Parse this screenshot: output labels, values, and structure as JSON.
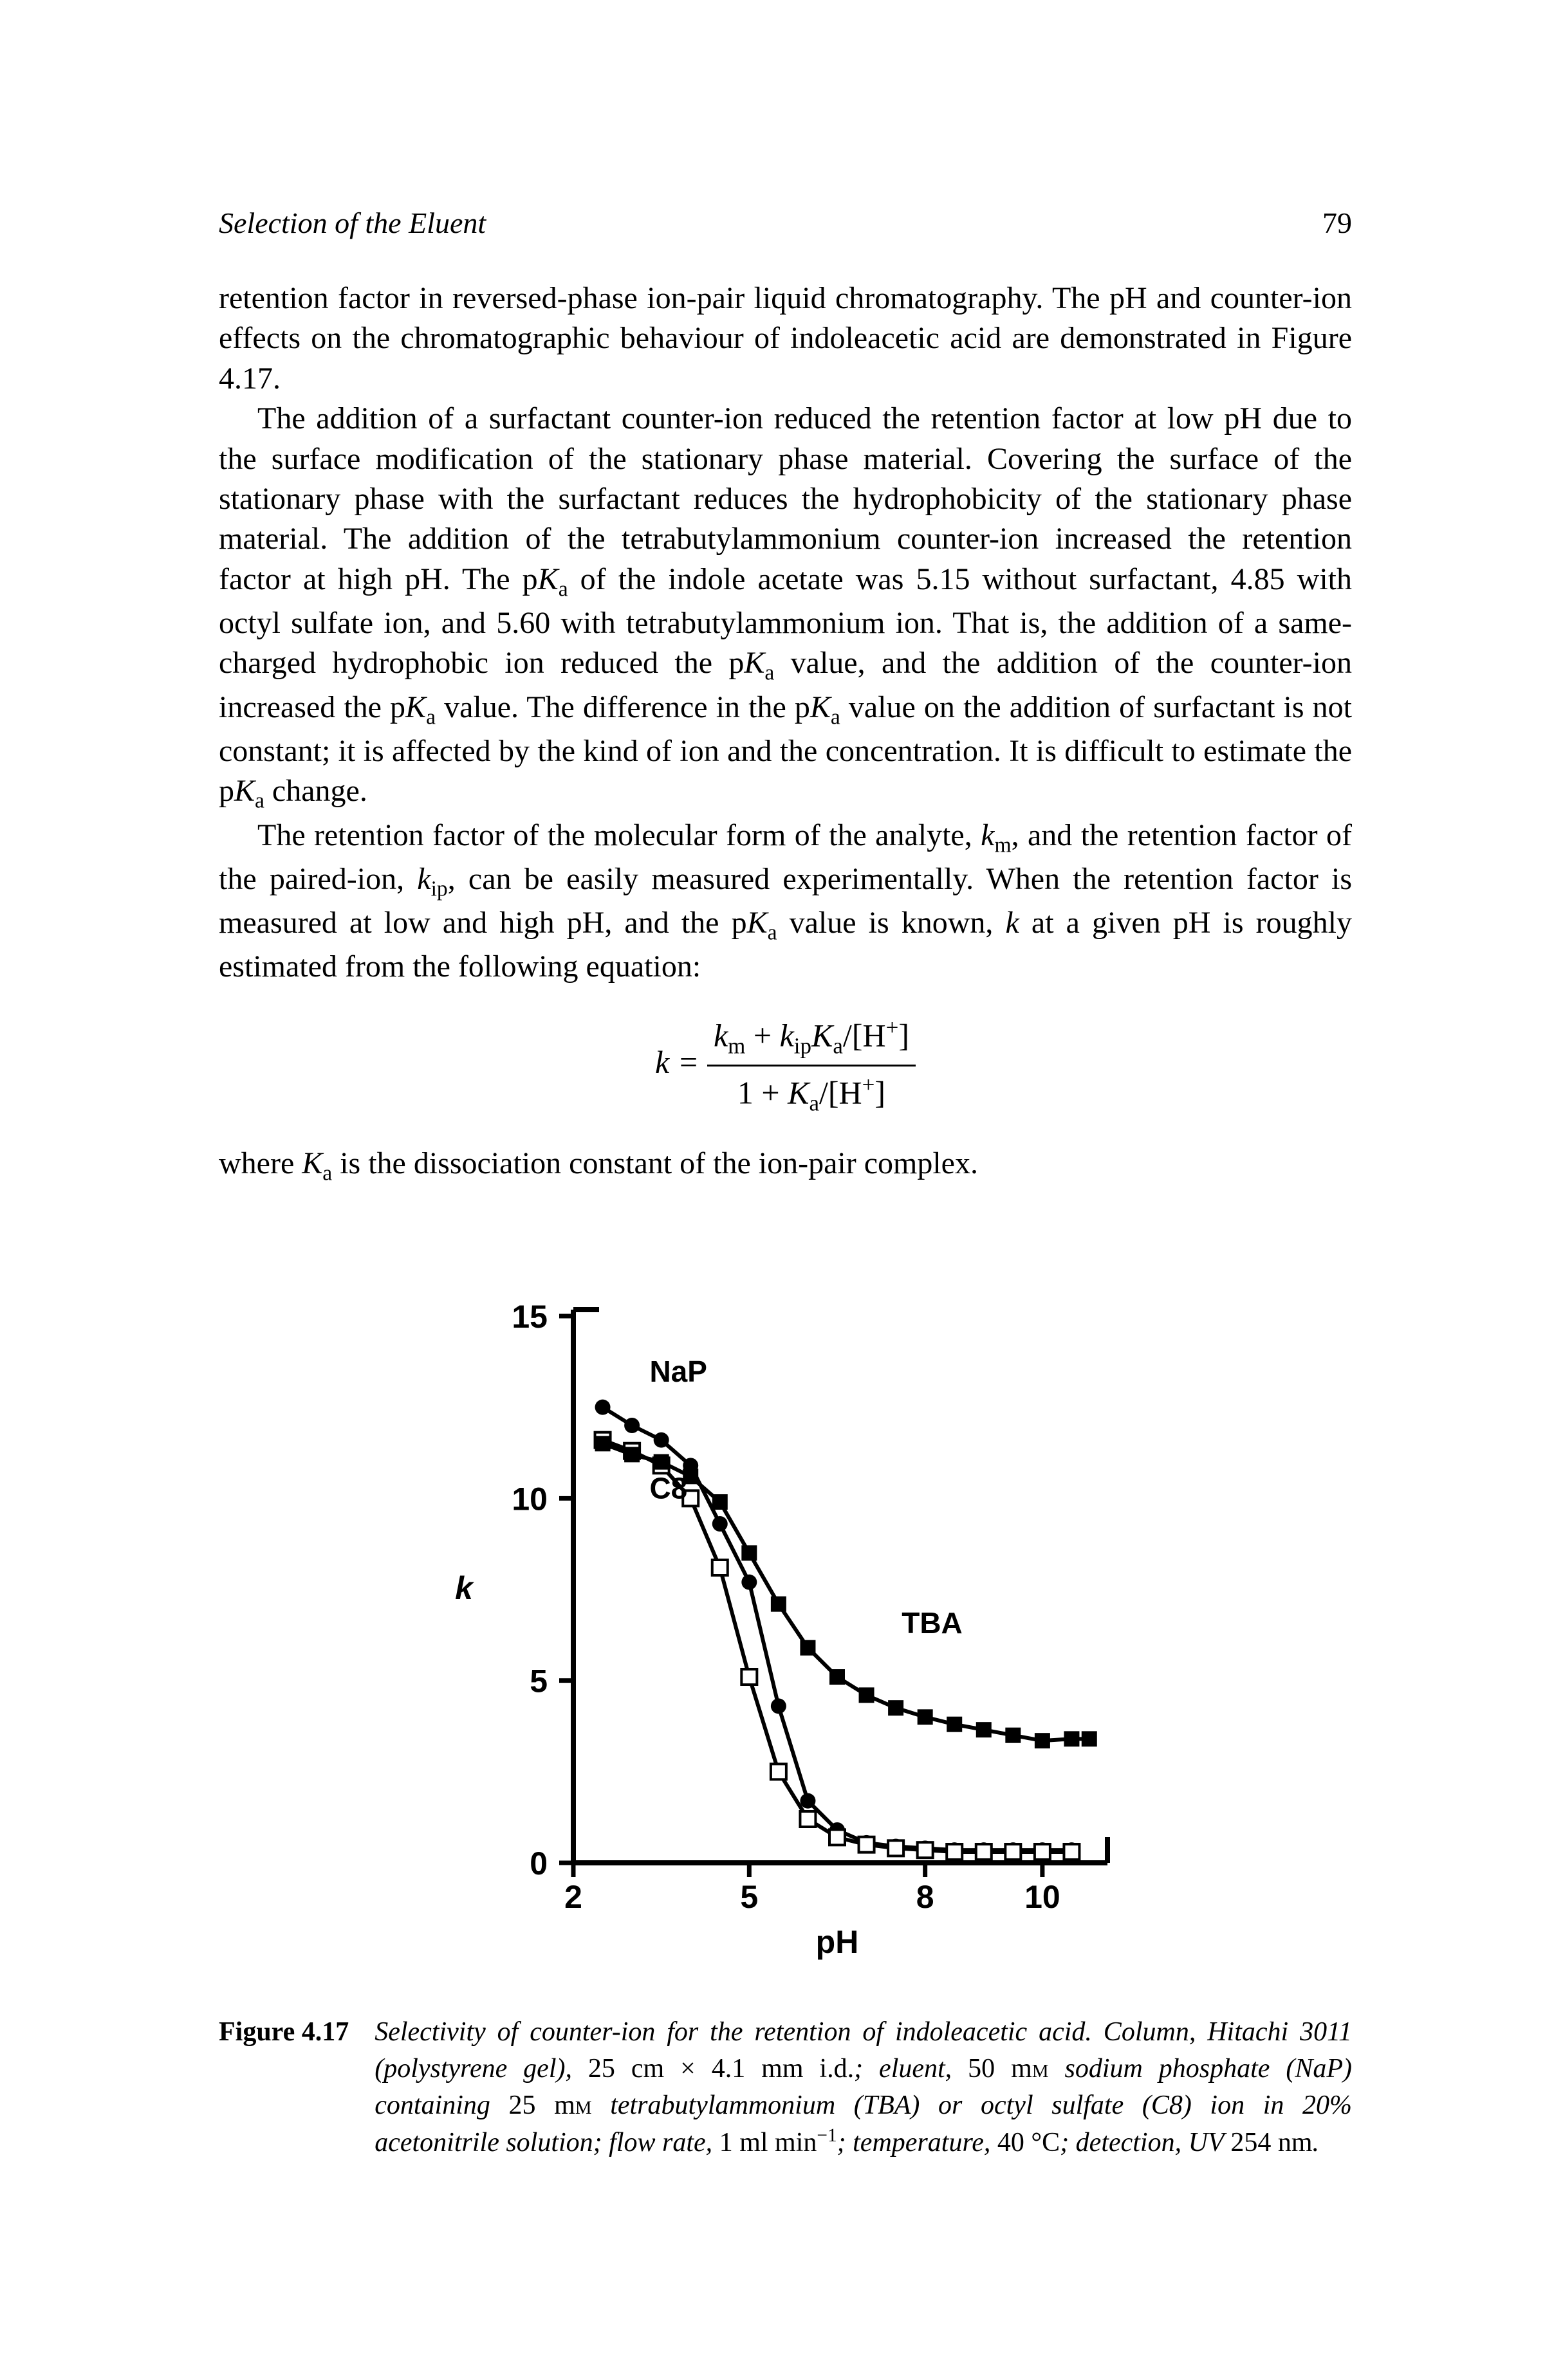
{
  "header": {
    "running_title": "Selection of the Eluent",
    "page_number": "79"
  },
  "paragraphs": {
    "p1": "retention factor in reversed-phase ion-pair liquid chromatography. The pH and counter-ion effects on the chromatographic behaviour of indoleacetic acid are demonstrated in Figure 4.17.",
    "p2_a": "The addition of a surfactant counter-ion reduced the retention factor at low pH due to the surface modification of the stationary phase material. Covering the surface of the stationary phase with the surfactant reduces the hydrophobicity of the stationary phase material. The addition of the tetrabutylammonium counter-ion increased the retention factor at high pH. The p",
    "p2_b": " of the indole acetate was 5.15 without surfactant, 4.85 with octyl sulfate ion, and 5.60 with tetrabutylammonium ion. That is, the addition of a same-charged hydrophobic ion reduced the p",
    "p2_c": " value, and the addition of the counter-ion increased the p",
    "p2_d": " value. The difference in the p",
    "p2_e": " value on the addition of surfactant is not constant; it is affected by the kind of ion and the concentration. It is difficult to estimate the p",
    "p2_f": " change.",
    "p3_a": "The retention factor of the molecular form of the analyte, ",
    "p3_b": ", and the retention factor of the paired-ion, ",
    "p3_c": ", can be easily measured experimentally. When the retention factor is measured at low and high pH, and the p",
    "p3_d": " value is known, ",
    "p3_e": " at a given pH is roughly estimated from the following equation:",
    "p4_a": "where ",
    "p4_b": " is the dissociation constant of the ion-pair complex."
  },
  "symbols": {
    "Ka": "K",
    "Ka_sub": "a",
    "km": "k",
    "km_sub": "m",
    "kip": "k",
    "kip_sub": "ip",
    "k": "k"
  },
  "equation": {
    "lhs": "k =",
    "num_a": "k",
    "num_a_sub": "m",
    "num_plus": " + ",
    "num_b": "k",
    "num_b_sub": "ip",
    "num_c": "K",
    "num_c_sub": "a",
    "num_d": "/[H",
    "num_d_sup": "+",
    "num_e": "]",
    "den_a": "1 + ",
    "den_b": "K",
    "den_b_sub": "a",
    "den_c": "/[H",
    "den_c_sup": "+",
    "den_d": "]"
  },
  "figure": {
    "label": "Figure 4.17",
    "caption_plain": "Selectivity of counter-ion for the retention of indoleacetic acid. Column, Hitachi 3011 (polystyrene gel), 25 cm × 4.1 mm i.d.; eluent, 50 mM sodium phosphate (NaP) containing 25 mM tetrabutylammonium (TBA) or octyl sulfate (C8) ion in 20% acetonitrile solution; flow rate, 1 ml min⁻¹; temperature, 40 °C; detection, UV 254 nm."
  },
  "chart": {
    "type": "line",
    "xlabel": "pH",
    "ylabel": "k",
    "xlim": [
      2,
      11
    ],
    "ylim": [
      0,
      15
    ],
    "xticks": [
      2,
      5,
      8,
      10
    ],
    "yticks": [
      0,
      5,
      10,
      15
    ],
    "tick_fontsize": 50,
    "label_fontsize": 50,
    "axis_color": "#000000",
    "background_color": "#ffffff",
    "line_width": 6,
    "marker_size": 12,
    "series": [
      {
        "name": "NaP",
        "label_pos": {
          "x": 3.3,
          "y": 13.2
        },
        "marker": "circle",
        "color": "#000000",
        "points": [
          {
            "x": 2.5,
            "y": 12.5
          },
          {
            "x": 3.0,
            "y": 12.0
          },
          {
            "x": 3.5,
            "y": 11.6
          },
          {
            "x": 4.0,
            "y": 10.9
          },
          {
            "x": 4.5,
            "y": 9.3
          },
          {
            "x": 5.0,
            "y": 7.7
          },
          {
            "x": 5.5,
            "y": 4.3
          },
          {
            "x": 6.0,
            "y": 1.7
          },
          {
            "x": 6.5,
            "y": 0.9
          },
          {
            "x": 7.0,
            "y": 0.55
          },
          {
            "x": 7.5,
            "y": 0.45
          },
          {
            "x": 8.0,
            "y": 0.4
          },
          {
            "x": 8.5,
            "y": 0.35
          },
          {
            "x": 9.0,
            "y": 0.35
          },
          {
            "x": 9.5,
            "y": 0.35
          },
          {
            "x": 10.0,
            "y": 0.35
          },
          {
            "x": 10.5,
            "y": 0.35
          }
        ]
      },
      {
        "name": "C8",
        "label_pos": {
          "x": 3.3,
          "y": 10.0
        },
        "marker": "square-open",
        "color": "#000000",
        "points": [
          {
            "x": 2.5,
            "y": 11.6
          },
          {
            "x": 3.0,
            "y": 11.3
          },
          {
            "x": 3.5,
            "y": 10.9
          },
          {
            "x": 4.0,
            "y": 10.0
          },
          {
            "x": 4.5,
            "y": 8.1
          },
          {
            "x": 5.0,
            "y": 5.1
          },
          {
            "x": 5.5,
            "y": 2.5
          },
          {
            "x": 6.0,
            "y": 1.2
          },
          {
            "x": 6.5,
            "y": 0.7
          },
          {
            "x": 7.0,
            "y": 0.5
          },
          {
            "x": 7.5,
            "y": 0.4
          },
          {
            "x": 8.0,
            "y": 0.35
          },
          {
            "x": 8.5,
            "y": 0.3
          },
          {
            "x": 9.0,
            "y": 0.3
          },
          {
            "x": 9.5,
            "y": 0.3
          },
          {
            "x": 10.0,
            "y": 0.3
          },
          {
            "x": 10.5,
            "y": 0.3
          }
        ]
      },
      {
        "name": "TBA",
        "label_pos": {
          "x": 7.6,
          "y": 6.3
        },
        "marker": "square",
        "color": "#000000",
        "points": [
          {
            "x": 2.5,
            "y": 11.5
          },
          {
            "x": 3.0,
            "y": 11.2
          },
          {
            "x": 3.5,
            "y": 11.0
          },
          {
            "x": 4.0,
            "y": 10.6
          },
          {
            "x": 4.5,
            "y": 9.9
          },
          {
            "x": 5.0,
            "y": 8.5
          },
          {
            "x": 5.5,
            "y": 7.1
          },
          {
            "x": 6.0,
            "y": 5.9
          },
          {
            "x": 6.5,
            "y": 5.1
          },
          {
            "x": 7.0,
            "y": 4.6
          },
          {
            "x": 7.5,
            "y": 4.25
          },
          {
            "x": 8.0,
            "y": 4.0
          },
          {
            "x": 8.5,
            "y": 3.8
          },
          {
            "x": 9.0,
            "y": 3.65
          },
          {
            "x": 9.5,
            "y": 3.5
          },
          {
            "x": 10.0,
            "y": 3.35
          },
          {
            "x": 10.5,
            "y": 3.4
          },
          {
            "x": 10.8,
            "y": 3.4
          }
        ]
      }
    ]
  }
}
